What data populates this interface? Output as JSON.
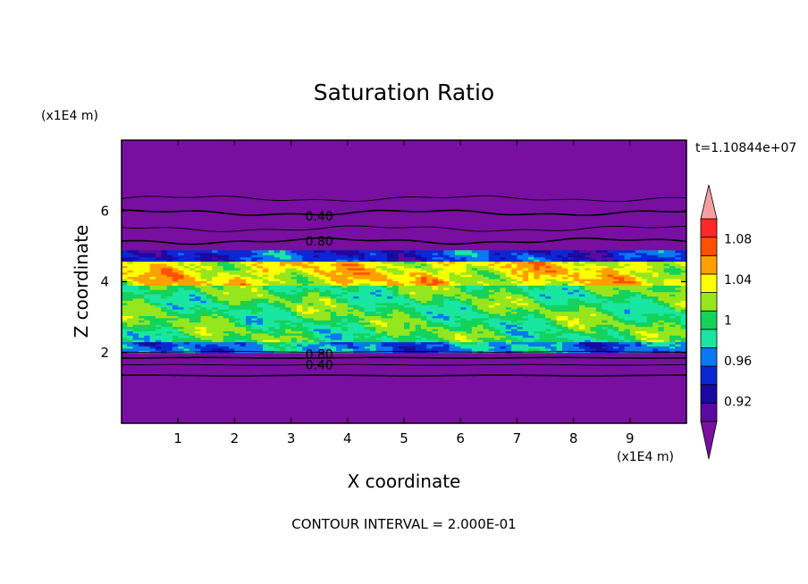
{
  "chart_data": {
    "type": "heatmap",
    "title": "Saturation Ratio",
    "xlabel": "X coordinate",
    "ylabel": "Z coordinate",
    "x_unit": "(x1E4 m)",
    "y_unit": "(x1E4 m)",
    "time_label": "t=1.10844e+07",
    "footer": "CONTOUR INTERVAL = 2.000E-01",
    "xlim": [
      0,
      10
    ],
    "ylim": [
      0,
      8
    ],
    "xticks": [
      1,
      2,
      3,
      4,
      5,
      6,
      7,
      8,
      9
    ],
    "yticks": [
      2,
      4,
      6
    ],
    "colorbar": {
      "labels": [
        "1.08",
        "1.04",
        "1",
        "0.96",
        "0.92"
      ],
      "label_values": [
        1.08,
        1.04,
        1.0,
        0.96,
        0.92
      ],
      "levels": [
        0.9,
        0.92,
        0.94,
        0.96,
        0.98,
        1.0,
        1.02,
        1.04,
        1.06,
        1.08,
        1.1
      ],
      "colors": [
        "#5a0aa0",
        "#1a0aa0",
        "#0a28d2",
        "#0a78f0",
        "#19e6a0",
        "#14d25a",
        "#96e61e",
        "#ffff00",
        "#ffa000",
        "#ff5000",
        "#ff2828"
      ],
      "over_color": "#f5a0a0",
      "under_color": "#780fa0",
      "extend": "both"
    },
    "contour_labels": [
      {
        "text": "0.40",
        "x": 3.5,
        "z": 5.85
      },
      {
        "text": "0.80",
        "x": 3.5,
        "z": 5.15
      },
      {
        "text": "0.80",
        "x": 3.5,
        "z": 1.95
      },
      {
        "text": "0.40",
        "x": 3.5,
        "z": 1.65
      }
    ],
    "regions": [
      {
        "z": [
          0.0,
          2.0
        ],
        "value": "under 0.9"
      },
      {
        "z": [
          2.0,
          2.3
        ],
        "value": 0.97
      },
      {
        "z": [
          2.3,
          3.9
        ],
        "value": 1.01
      },
      {
        "z": [
          3.9,
          4.6
        ],
        "value": 1.05
      },
      {
        "z": [
          4.6,
          4.9
        ],
        "value": 0.95
      },
      {
        "z": [
          4.9,
          8.0
        ],
        "value": "under 0.9"
      }
    ]
  }
}
